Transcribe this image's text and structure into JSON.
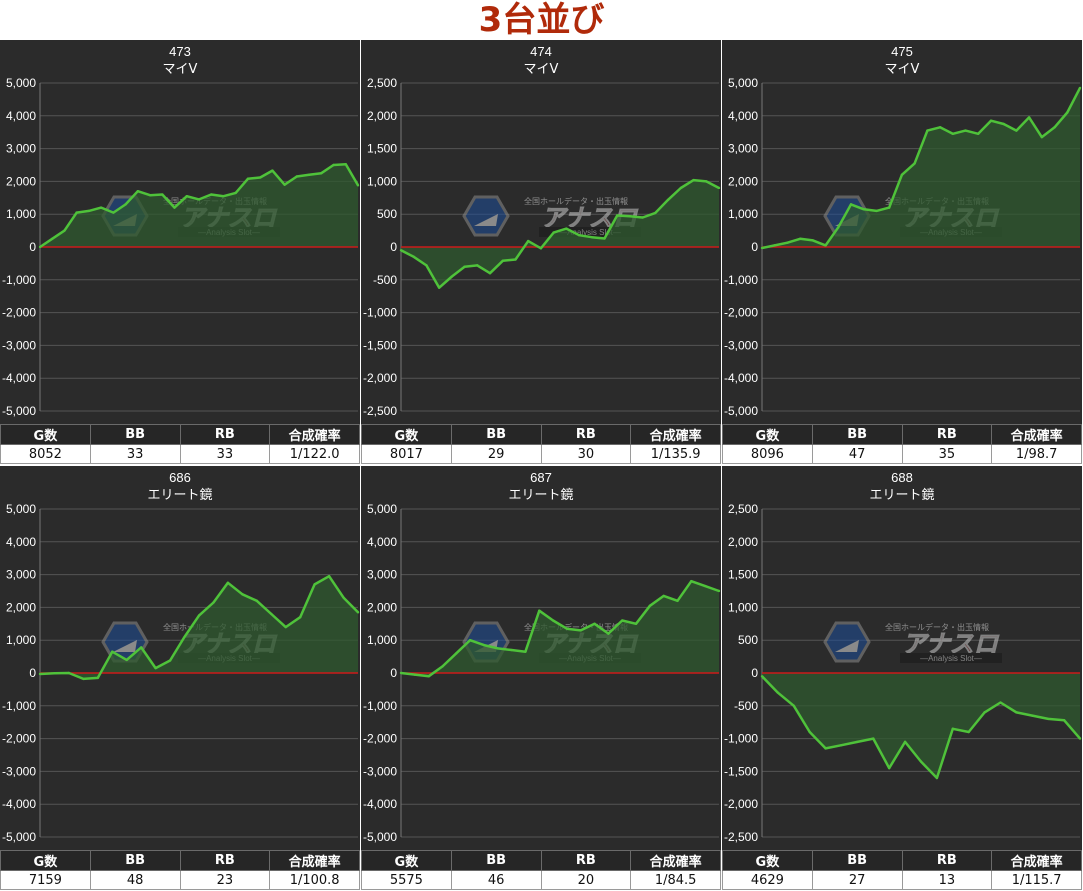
{
  "page_title": "3台並び",
  "stats_headers": [
    "G数",
    "BB",
    "RB",
    "合成確率"
  ],
  "colors": {
    "background": "#2b2b2b",
    "line": "#4fc23a",
    "fill": "#2f5a2f",
    "zero_line": "#cc1b1b",
    "grid": "#555555",
    "title": "#b02a0a"
  },
  "watermark": {
    "brand": "アナスロ",
    "tagline": "全国ホールデータ・出玉情報",
    "subtitle": "—Analysis Slot—"
  },
  "charts": [
    {
      "machine_no": "473",
      "machine_name": "マイV",
      "stats": {
        "games": "8052",
        "bb": "33",
        "rb": "33",
        "rate": "1/122.0"
      }
    },
    {
      "machine_no": "474",
      "machine_name": "マイV",
      "stats": {
        "games": "8017",
        "bb": "29",
        "rb": "30",
        "rate": "1/135.9"
      }
    },
    {
      "machine_no": "475",
      "machine_name": "マイV",
      "stats": {
        "games": "8096",
        "bb": "47",
        "rb": "35",
        "rate": "1/98.7"
      }
    },
    {
      "machine_no": "686",
      "machine_name": "エリート鏡",
      "stats": {
        "games": "7159",
        "bb": "48",
        "rb": "23",
        "rate": "1/100.8"
      }
    },
    {
      "machine_no": "687",
      "machine_name": "エリート鏡",
      "stats": {
        "games": "5575",
        "bb": "46",
        "rb": "20",
        "rate": "1/84.5"
      }
    },
    {
      "machine_no": "688",
      "machine_name": "エリート鏡",
      "stats": {
        "games": "4629",
        "bb": "27",
        "rb": "13",
        "rate": "1/115.7"
      }
    }
  ],
  "chart_data": [
    {
      "type": "area",
      "title": "473\nマイV",
      "ylim": [
        -5000,
        5000
      ],
      "yticks": [
        5000,
        4000,
        3000,
        2000,
        1000,
        0,
        -1000,
        -2000,
        -3000,
        -4000,
        -5000
      ],
      "ytick_labels": [
        "5,000",
        "4,000",
        "3,000",
        "2,000",
        "1,000",
        "0",
        "-1,000",
        "-2,000",
        "-3,000",
        "-4,000",
        "-5,000"
      ],
      "grid": true,
      "values": [
        0,
        250,
        500,
        1050,
        1100,
        1200,
        1050,
        1300,
        1700,
        1580,
        1600,
        1200,
        1550,
        1450,
        1600,
        1550,
        1650,
        2080,
        2120,
        2330,
        1900,
        2150,
        2200,
        2250,
        2500,
        2520,
        1880
      ]
    },
    {
      "type": "area",
      "title": "474\nマイV",
      "ylim": [
        -2500,
        2500
      ],
      "yticks": [
        2500,
        2000,
        1500,
        1000,
        500,
        0,
        -500,
        -1000,
        -1500,
        -2000,
        -2500
      ],
      "ytick_labels": [
        "2,500",
        "2,000",
        "1,500",
        "1,000",
        "500",
        "0",
        "-500",
        "-1,000",
        "-1,500",
        "-2,000",
        "-2,500"
      ],
      "grid": true,
      "values": [
        -50,
        -150,
        -280,
        -620,
        -450,
        -300,
        -280,
        -400,
        -210,
        -190,
        90,
        -20,
        220,
        280,
        180,
        150,
        130,
        480,
        470,
        450,
        520,
        720,
        900,
        1020,
        1000,
        900
      ]
    },
    {
      "type": "area",
      "title": "475\nマイV",
      "ylim": [
        -5000,
        5000
      ],
      "yticks": [
        5000,
        4000,
        3000,
        2000,
        1000,
        0,
        -1000,
        -2000,
        -3000,
        -4000,
        -5000
      ],
      "ytick_labels": [
        "5,000",
        "4,000",
        "3,000",
        "2,000",
        "1,000",
        "0",
        "-1,000",
        "-2,000",
        "-3,000",
        "-4,000",
        "-5,000"
      ],
      "grid": true,
      "values": [
        -30,
        50,
        130,
        250,
        200,
        50,
        600,
        1300,
        1150,
        1100,
        1200,
        2200,
        2550,
        3550,
        3650,
        3450,
        3550,
        3450,
        3850,
        3750,
        3550,
        3950,
        3350,
        3650,
        4100,
        4850
      ]
    },
    {
      "type": "area",
      "title": "686\nエリート鏡",
      "ylim": [
        -5000,
        5000
      ],
      "yticks": [
        5000,
        4000,
        3000,
        2000,
        1000,
        0,
        -1000,
        -2000,
        -3000,
        -4000,
        -5000
      ],
      "ytick_labels": [
        "5,000",
        "4,000",
        "3,000",
        "2,000",
        "1,000",
        "0",
        "-1,000",
        "-2,000",
        "-3,000",
        "-4,000",
        "-5,000"
      ],
      "grid": true,
      "values": [
        -30,
        -10,
        0,
        -180,
        -150,
        650,
        400,
        780,
        150,
        380,
        1100,
        1750,
        2150,
        2750,
        2400,
        2200,
        1800,
        1400,
        1700,
        2700,
        2950,
        2300,
        1850
      ]
    },
    {
      "type": "area",
      "title": "687\nエリート鏡",
      "ylim": [
        -5000,
        5000
      ],
      "yticks": [
        5000,
        4000,
        3000,
        2000,
        1000,
        0,
        -1000,
        -2000,
        -3000,
        -4000,
        -5000
      ],
      "ytick_labels": [
        "5,000",
        "4,000",
        "3,000",
        "2,000",
        "1,000",
        "0",
        "-1,000",
        "-2,000",
        "-3,000",
        "-4,000",
        "-5,000"
      ],
      "grid": true,
      "values": [
        0,
        -50,
        -100,
        200,
        600,
        1000,
        850,
        750,
        700,
        650,
        1900,
        1600,
        1350,
        1300,
        1500,
        1200,
        1600,
        1500,
        2050,
        2350,
        2200,
        2800,
        2650,
        2500
      ]
    },
    {
      "type": "area",
      "title": "688\nエリート鏡",
      "ylim": [
        -2500,
        2500
      ],
      "yticks": [
        2500,
        2000,
        1500,
        1000,
        500,
        0,
        -500,
        -1000,
        -1500,
        -2000,
        -2500
      ],
      "ytick_labels": [
        "2,500",
        "2,000",
        "1,500",
        "1,000",
        "500",
        "0",
        "-500",
        "-1,000",
        "-1,500",
        "-2,000",
        "-2,500"
      ],
      "grid": true,
      "values": [
        -50,
        -300,
        -500,
        -900,
        -1150,
        -1100,
        -1050,
        -1000,
        -1450,
        -1050,
        -1350,
        -1600,
        -850,
        -900,
        -600,
        -450,
        -600,
        -650,
        -700,
        -720,
        -1000
      ]
    }
  ]
}
